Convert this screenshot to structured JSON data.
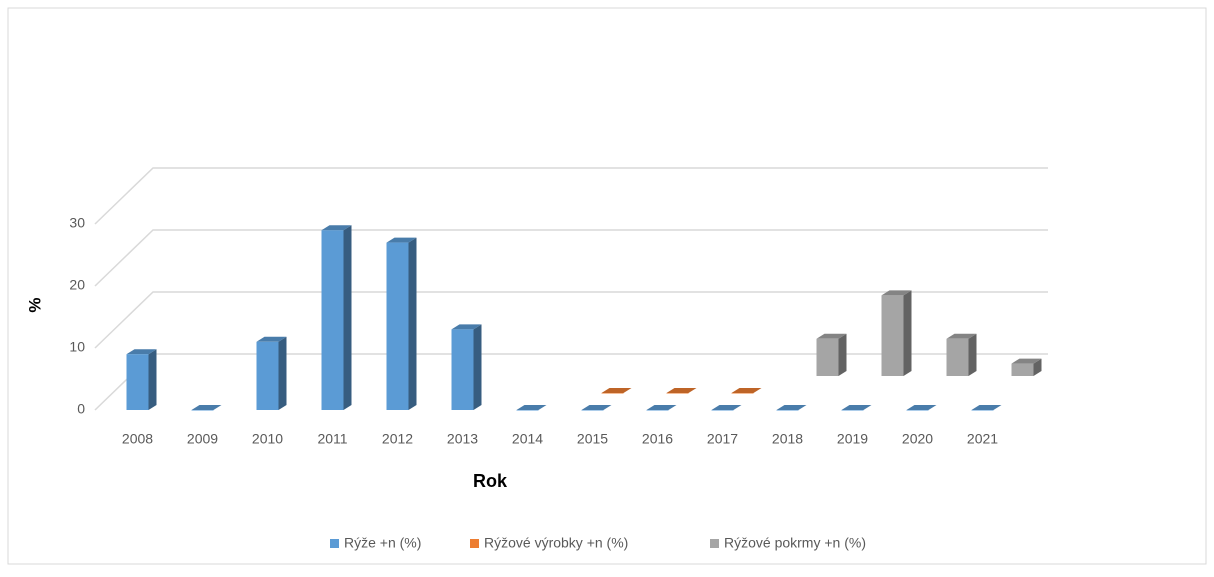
{
  "chart_data": {
    "type": "bar3d",
    "x_label": "Rok",
    "y_label": "%",
    "categories": [
      "2008",
      "2009",
      "2010",
      "2011",
      "2012",
      "2013",
      "2014",
      "2015",
      "2016",
      "2017",
      "2018",
      "2019",
      "2020",
      "2021"
    ],
    "series": [
      {
        "name": "Rýže +n (%)",
        "color": "#5b9bd5",
        "values": [
          9,
          0,
          11,
          29,
          27,
          13,
          0,
          0,
          0,
          0,
          0,
          0,
          0,
          0
        ]
      },
      {
        "name": "Rýžové výrobky +n (%)",
        "color": "#ed7d31",
        "values": [
          null,
          null,
          null,
          null,
          null,
          null,
          null,
          0,
          0,
          0,
          null,
          null,
          null,
          null
        ]
      },
      {
        "name": "Rýžové pokrmy +n (%)",
        "color": "#a5a5a5",
        "values": [
          null,
          null,
          null,
          null,
          null,
          null,
          null,
          null,
          null,
          null,
          6,
          13,
          6,
          2
        ]
      }
    ],
    "ylim": [
      0,
      40
    ],
    "yticks": [
      0,
      10,
      20,
      30
    ],
    "grid": true,
    "legend": "bottom"
  }
}
